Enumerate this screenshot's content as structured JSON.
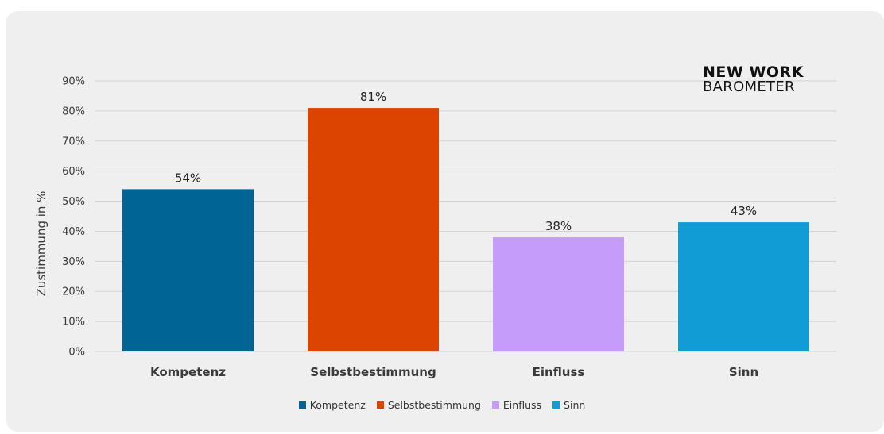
{
  "chart_data": {
    "type": "bar",
    "categories": [
      "Kompetenz",
      "Selbstbestimmung",
      "Einfluss",
      "Sinn"
    ],
    "values": [
      54,
      81,
      38,
      43
    ],
    "value_labels": [
      "54%",
      "81%",
      "38%",
      "43%"
    ],
    "colors": [
      "#006595",
      "#dc4401",
      "#c69cfa",
      "#129cd6"
    ],
    "ylabel": "Zustimmung in %",
    "ylim": [
      0,
      90
    ],
    "yticks": [
      "0%",
      "10%",
      "20%",
      "30%",
      "40%",
      "50%",
      "60%",
      "70%",
      "80%",
      "90%"
    ],
    "grid": true,
    "legend": {
      "placement": "bottom-center",
      "entries": [
        "Kompetenz",
        "Selbstbestimmung",
        "Einfluss",
        "Sinn"
      ]
    }
  },
  "logo": {
    "line1": "NEW WORK",
    "line2": "BAROMETER"
  }
}
